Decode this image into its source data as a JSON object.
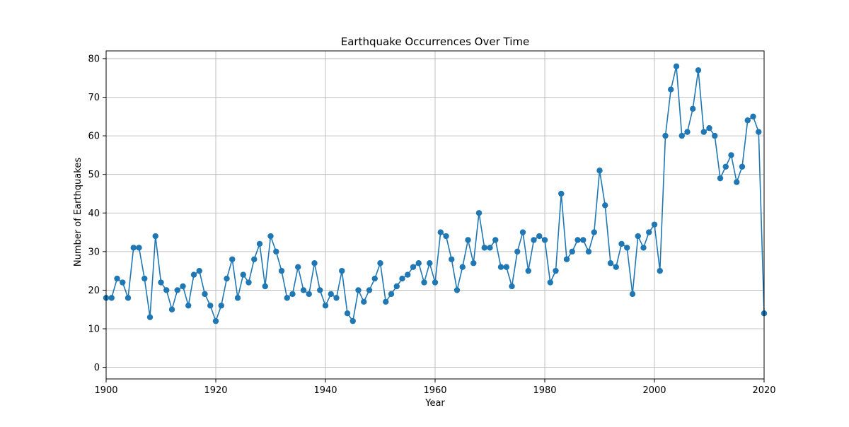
{
  "chart_data": {
    "type": "line",
    "title": "Earthquake Occurrences Over Time",
    "xlabel": "Year",
    "ylabel": "Number of Earthquakes",
    "xlim": [
      1900,
      2020
    ],
    "ylim": [
      -3,
      82
    ],
    "xticks": [
      1900,
      1920,
      1940,
      1960,
      1980,
      2000,
      2020
    ],
    "yticks": [
      0,
      10,
      20,
      30,
      40,
      50,
      60,
      70,
      80
    ],
    "grid": true,
    "marker": "circle",
    "series": [
      {
        "color": "#1f77b4",
        "x": [
          1900,
          1901,
          1902,
          1903,
          1904,
          1905,
          1906,
          1907,
          1908,
          1909,
          1910,
          1911,
          1912,
          1913,
          1914,
          1915,
          1916,
          1917,
          1918,
          1919,
          1920,
          1921,
          1922,
          1923,
          1924,
          1925,
          1926,
          1927,
          1928,
          1929,
          1930,
          1931,
          1932,
          1933,
          1934,
          1935,
          1936,
          1937,
          1938,
          1939,
          1940,
          1941,
          1942,
          1943,
          1944,
          1945,
          1946,
          1947,
          1948,
          1949,
          1950,
          1951,
          1952,
          1953,
          1954,
          1955,
          1956,
          1957,
          1958,
          1959,
          1960,
          1961,
          1962,
          1963,
          1964,
          1965,
          1966,
          1967,
          1968,
          1969,
          1970,
          1971,
          1972,
          1973,
          1974,
          1975,
          1976,
          1977,
          1978,
          1979,
          1980,
          1981,
          1982,
          1983,
          1984,
          1985,
          1986,
          1987,
          1988,
          1989,
          1990,
          1991,
          1992,
          1993,
          1994,
          1995,
          1996,
          1997,
          1998,
          1999,
          2000,
          2001,
          2002,
          2003,
          2004,
          2005,
          2006,
          2007,
          2008,
          2009,
          2010,
          2011,
          2012,
          2013,
          2014,
          2015,
          2016,
          2017,
          2018,
          2019,
          2020
        ],
        "y": [
          18,
          18,
          23,
          22,
          18,
          31,
          31,
          23,
          13,
          34,
          22,
          20,
          15,
          20,
          21,
          16,
          24,
          25,
          19,
          16,
          12,
          16,
          23,
          28,
          18,
          24,
          22,
          28,
          32,
          21,
          34,
          30,
          25,
          18,
          19,
          26,
          20,
          19,
          27,
          20,
          16,
          19,
          18,
          25,
          14,
          12,
          20,
          17,
          20,
          23,
          27,
          17,
          19,
          21,
          23,
          24,
          26,
          27,
          22,
          27,
          22,
          35,
          34,
          28,
          20,
          26,
          33,
          27,
          40,
          31,
          31,
          33,
          26,
          26,
          21,
          30,
          35,
          25,
          33,
          34,
          33,
          22,
          25,
          45,
          28,
          30,
          33,
          33,
          30,
          35,
          51,
          42,
          27,
          26,
          32,
          31,
          19,
          34,
          31,
          35,
          37,
          25,
          60,
          72,
          78,
          60,
          61,
          67,
          77,
          61,
          62,
          60,
          49,
          52,
          55,
          48,
          52,
          64,
          65,
          61,
          14
        ]
      }
    ]
  }
}
